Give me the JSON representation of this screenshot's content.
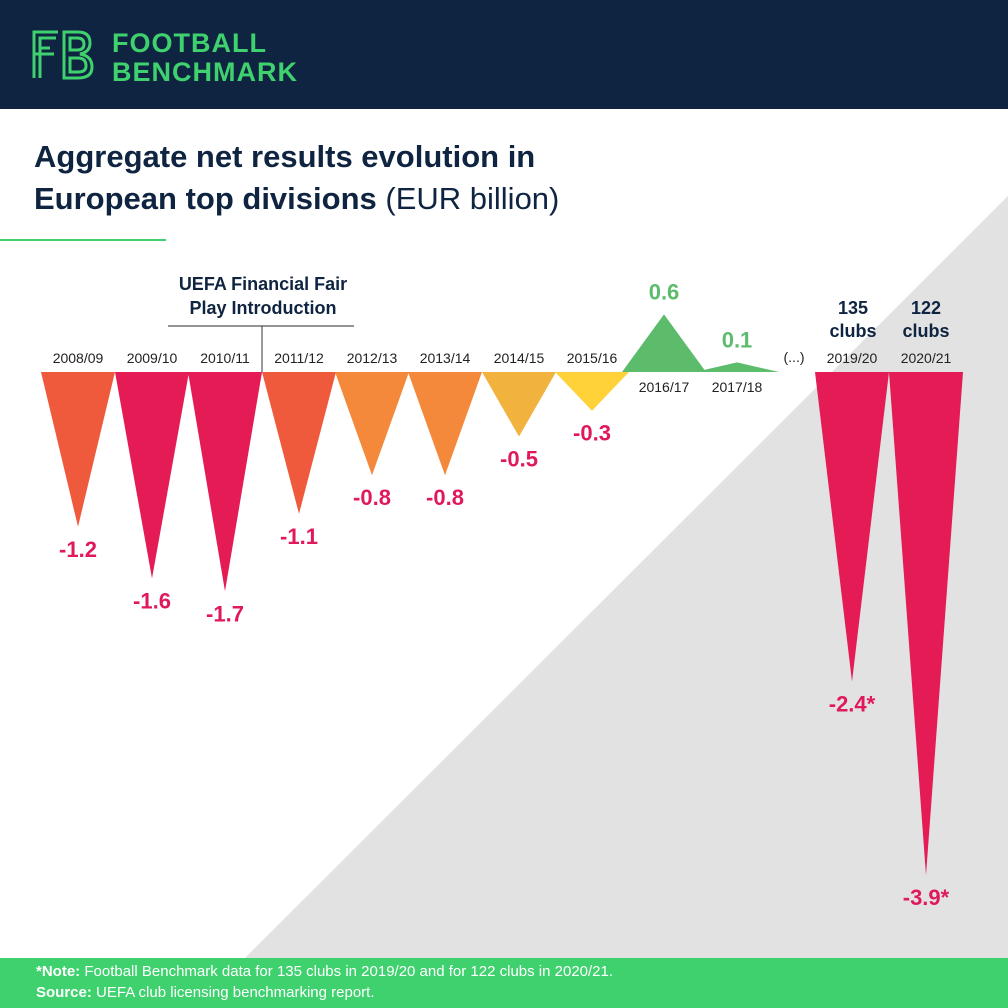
{
  "brand": {
    "line1": "FOOTBALL",
    "line2": "BENCHMARK",
    "logo_icon": "fb-logo-icon",
    "color": "#3fd16e"
  },
  "title": {
    "main_line1": "Aggregate net results evolution in",
    "main_line2": "European top divisions",
    "unit": "(EUR billion)"
  },
  "annotations": {
    "ffp_line1": "UEFA Financial Fair",
    "ffp_line2": "Play Introduction",
    "ellipsis": "(...)",
    "clubs_2019_num": "135",
    "clubs_2019_word": "clubs",
    "clubs_2020_num": "122",
    "clubs_2020_word": "clubs"
  },
  "footer": {
    "note_key": "*Note:",
    "note_text": "Football Benchmark data for 135 clubs in 2019/20 and for 122 clubs in 2020/21.",
    "source_key": "Source:",
    "source_text": "UEFA club licensing benchmarking report."
  },
  "colors": {
    "header_bg": "#0f2440",
    "negative_label": "#e0195a",
    "positive_label": "#5cbc6c",
    "footer_bg": "#3fd16e",
    "backdrop": "#e2e2e2"
  },
  "chart_data": {
    "type": "bar",
    "title": "Aggregate net results evolution in European top divisions",
    "unit": "(EUR billion)",
    "categories": [
      "2008/09",
      "2009/10",
      "2010/11",
      "2011/12",
      "2012/13",
      "2013/14",
      "2014/15",
      "2015/16",
      "2016/17",
      "2017/18",
      "2019/20",
      "2020/21"
    ],
    "values": [
      -1.2,
      -1.6,
      -1.7,
      -1.1,
      -0.8,
      -0.8,
      -0.5,
      -0.3,
      0.6,
      0.1,
      -2.4,
      -3.9
    ],
    "value_labels": [
      "-1.2",
      "-1.6",
      "-1.7",
      "-1.1",
      "-0.8",
      "-0.8",
      "-0.5",
      "-0.3",
      "0.6",
      "0.1",
      "-2.4*",
      "-3.9*"
    ],
    "bar_colors": [
      "#f05a3c",
      "#e41b54",
      "#e41b54",
      "#f05a3c",
      "#f5893b",
      "#f5893b",
      "#f2b23e",
      "#ffd23a",
      "#5cbc6c",
      "#5cbc6c",
      "#e41b54",
      "#e41b54"
    ],
    "shape": "triangle",
    "grid": false,
    "legend": "none"
  }
}
